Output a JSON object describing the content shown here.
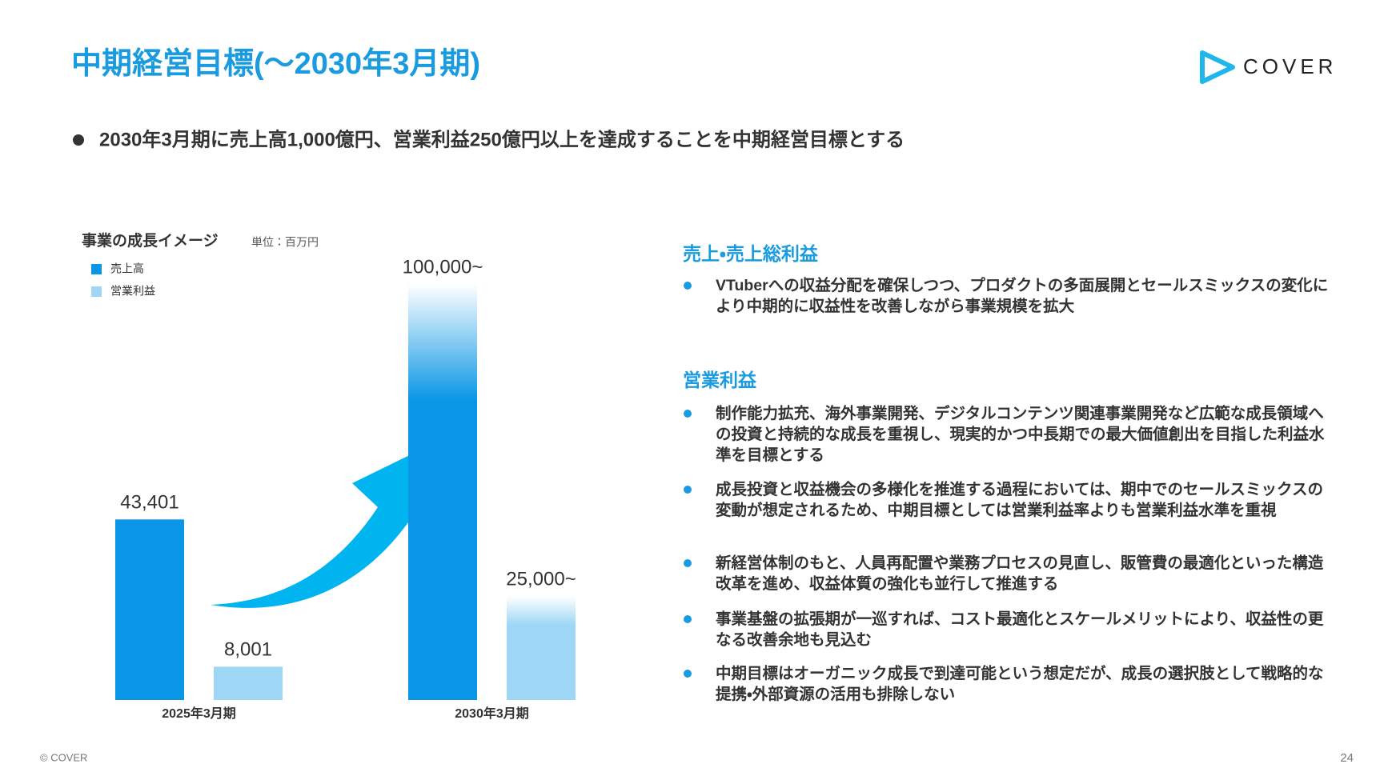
{
  "header": {
    "title": "中期経営目標(〜2030年3月期)",
    "logo": "COVER"
  },
  "lead": "2030年3月期に売上高1,000億円、営業利益250億円以上を達成することを中期経営目標とする",
  "chart_data": {
    "type": "bar",
    "title": "事業の成長イメージ",
    "subtitle": "単位：百万円",
    "categories": [
      "2025年3月期",
      "2030年3月期"
    ],
    "series": [
      {
        "name": "売上高",
        "color": "#0a96e6",
        "values": [
          43401,
          100000
        ],
        "value_labels": [
          "43,401",
          "100,000~"
        ]
      },
      {
        "name": "営業利益",
        "color": "#9dd7f5",
        "values": [
          8001,
          25000
        ],
        "value_labels": [
          "8,001",
          "25,000~"
        ]
      }
    ]
  },
  "right": {
    "sections": [
      {
        "heading": "売上・売上総利益",
        "items": [
          "VTuberへの収益分配を確保しつつ、プロダクトの多面展開とセールスミックスの変化により中期的に収益性を改善しながら事業規模を拡大"
        ]
      },
      {
        "heading": "営業利益",
        "items": [
          "制作能力拡充、海外事業開発、デジタルコンテンツ関連事業開発など広範な成長領域への投資と持続的な成長を重視し、現実的かつ中長期での最大価値創出を目指した利益水準を目標とする",
          "成長投資と収益機会の多様化を推進する過程においては、期中でのセールスミックスの変動が想定されるため、中期目標としては営業利益率よりも営業利益水準を重視",
          "新経営体制のもと、人員再配置や業務プロセスの見直し、販管費の最適化といった構造改革を進め、収益体質の強化も並行して推進する",
          "事業基盤の拡張期が一巡すれば、コスト最適化とスケールメリットにより、収益性の更なる改善余地も見込む",
          "中期目標はオーガニック成長で到達可能という想定だが、成長の選択肢として戦略的な提携・外部資源の活用も排除しない"
        ]
      }
    ]
  },
  "footer": {
    "copyright": "© COVER",
    "page": "24"
  }
}
